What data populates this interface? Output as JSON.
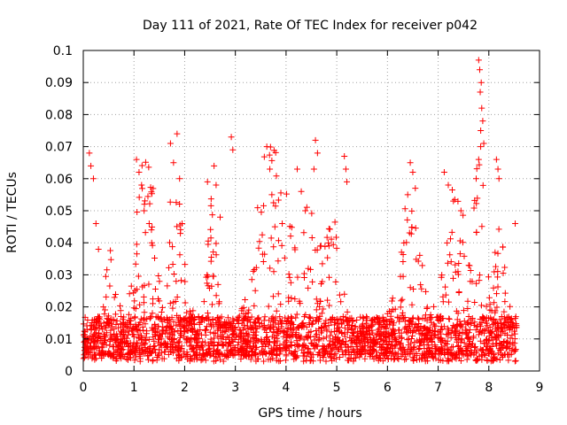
{
  "chart_data": {
    "type": "scatter",
    "title": "Day 111 of 2021, Rate Of TEC Index for receiver p042",
    "xlabel": "GPS time / hours",
    "ylabel": "ROTI / TECUs",
    "xlim": [
      0,
      9
    ],
    "ylim": [
      0,
      0.1
    ],
    "xticks": [
      "0",
      "1",
      "2",
      "3",
      "4",
      "5",
      "6",
      "7",
      "8",
      "9"
    ],
    "yticks": [
      "0",
      "0.01",
      "0.02",
      "0.03",
      "0.04",
      "0.05",
      "0.06",
      "0.07",
      "0.08",
      "0.09",
      "0.1"
    ],
    "grid": true,
    "marker": "+",
    "series": [
      {
        "name": "ROTI",
        "color": "#ff0000",
        "x_range": [
          0.0,
          8.55
        ],
        "typical_range": [
          0.005,
          0.015
        ],
        "points": [
          [
            0.12,
            0.068
          ],
          [
            0.15,
            0.064
          ],
          [
            0.2,
            0.06
          ],
          [
            0.25,
            0.046
          ],
          [
            0.3,
            0.038
          ],
          [
            1.05,
            0.066
          ],
          [
            1.1,
            0.062
          ],
          [
            1.15,
            0.058
          ],
          [
            1.2,
            0.05
          ],
          [
            1.3,
            0.046
          ],
          [
            1.35,
            0.04
          ],
          [
            1.72,
            0.071
          ],
          [
            1.78,
            0.065
          ],
          [
            1.85,
            0.074
          ],
          [
            1.9,
            0.06
          ],
          [
            1.95,
            0.046
          ],
          [
            2.45,
            0.059
          ],
          [
            2.58,
            0.064
          ],
          [
            2.62,
            0.058
          ],
          [
            2.7,
            0.048
          ],
          [
            2.92,
            0.073
          ],
          [
            2.95,
            0.069
          ],
          [
            3.62,
            0.07
          ],
          [
            3.68,
            0.063
          ],
          [
            3.72,
            0.055
          ],
          [
            3.78,
            0.045
          ],
          [
            4.22,
            0.063
          ],
          [
            4.3,
            0.056
          ],
          [
            4.38,
            0.05
          ],
          [
            4.58,
            0.072
          ],
          [
            4.62,
            0.068
          ],
          [
            4.55,
            0.063
          ],
          [
            5.15,
            0.067
          ],
          [
            5.18,
            0.063
          ],
          [
            5.2,
            0.059
          ],
          [
            6.45,
            0.065
          ],
          [
            6.5,
            0.062
          ],
          [
            6.55,
            0.057
          ],
          [
            6.4,
            0.055
          ],
          [
            7.12,
            0.062
          ],
          [
            7.2,
            0.058
          ],
          [
            7.3,
            0.053
          ],
          [
            7.45,
            0.05
          ],
          [
            7.8,
            0.097
          ],
          [
            7.82,
            0.094
          ],
          [
            7.85,
            0.09
          ],
          [
            7.83,
            0.087
          ],
          [
            7.86,
            0.082
          ],
          [
            7.88,
            0.078
          ],
          [
            7.84,
            0.075
          ],
          [
            7.9,
            0.071
          ],
          [
            7.8,
            0.066
          ],
          [
            7.75,
            0.06
          ],
          [
            8.15,
            0.066
          ],
          [
            8.18,
            0.063
          ],
          [
            8.2,
            0.06
          ],
          [
            8.52,
            0.046
          ]
        ]
      }
    ]
  }
}
